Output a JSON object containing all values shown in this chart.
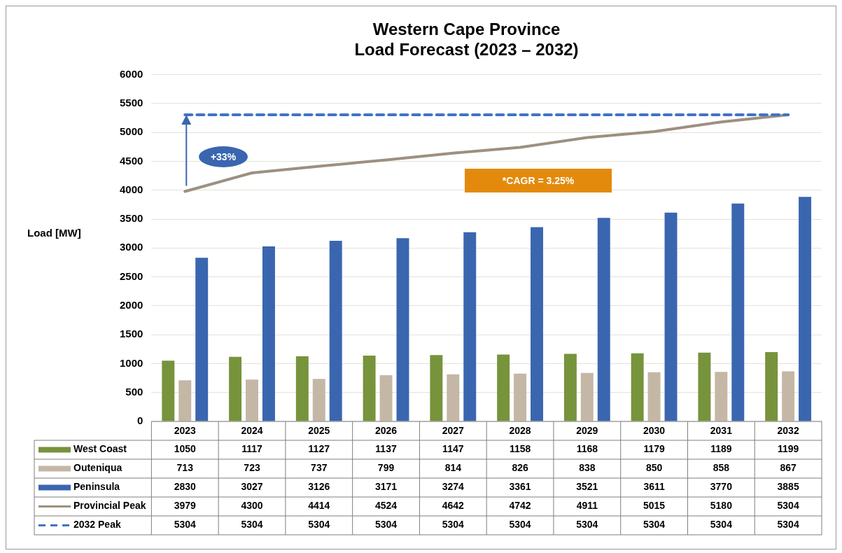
{
  "chart_data": {
    "type": "bar",
    "title": "Western Cape Province\nLoad Forecast (2023 – 2032)",
    "ylabel": "Load [MW]",
    "categories": [
      "2023",
      "2024",
      "2025",
      "2026",
      "2027",
      "2028",
      "2029",
      "2030",
      "2031",
      "2032"
    ],
    "series": [
      {
        "name": "West Coast",
        "color": "#77933c",
        "values": [
          1050,
          1117,
          1127,
          1137,
          1147,
          1158,
          1168,
          1179,
          1189,
          1199
        ]
      },
      {
        "name": "Outeniqua",
        "color": "#c4b7a6",
        "values": [
          713,
          723,
          737,
          799,
          814,
          826,
          838,
          850,
          858,
          867
        ]
      },
      {
        "name": "Peninsula",
        "color": "#3a66b0",
        "values": [
          2830,
          3027,
          3126,
          3171,
          3274,
          3361,
          3521,
          3611,
          3770,
          3885
        ]
      },
      {
        "name": "Provincial Peak",
        "type": "line",
        "color": "#9d9080",
        "marker": "none",
        "line_style": "solid",
        "values": [
          3979,
          4300,
          4414,
          4524,
          4642,
          4742,
          4911,
          5015,
          5180,
          5304
        ]
      },
      {
        "name": "2032 Peak",
        "type": "line",
        "color": "#4472c4",
        "marker": "none",
        "line_style": "dashed",
        "values": [
          5304,
          5304,
          5304,
          5304,
          5304,
          5304,
          5304,
          5304,
          5304,
          5304
        ]
      }
    ],
    "ylim": [
      0,
      6000
    ],
    "yticks": [
      0,
      500,
      1000,
      1500,
      2000,
      2500,
      3000,
      3500,
      4000,
      4500,
      5000,
      5500,
      6000
    ],
    "grid": "y",
    "legend": "bottom",
    "data_labels": true,
    "annotations": [
      "+33%",
      "*CAGR = 3.25%"
    ]
  }
}
